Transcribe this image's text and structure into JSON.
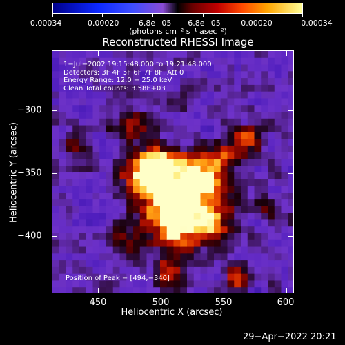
{
  "colorbar": {
    "tick_labels": [
      "−0.00034",
      "−0.00020",
      "−6.8e−05",
      "6.8e−05",
      "0.00020",
      "0.00034"
    ],
    "units": "(photons cm⁻² s⁻¹ asec⁻²)"
  },
  "title": "Reconstructed RHESSI Image",
  "annotation": {
    "time_range": "1−Jul−2002 19:15:48.000 to 19:21:48.000",
    "detectors": "Detectors: 3F 4F 5F 6F 7F 8F, Att 0",
    "energy_range": "Energy Range: 12.0 − 25.0 keV",
    "clean_counts": "Clean     Total counts: 3.58E+03",
    "peak_position": "Position of Peak = [494,−340]"
  },
  "axes": {
    "x_label": "Heliocentric X (arcsec)",
    "y_label": "Heliocentric Y (arcsec)",
    "x_ticks": [
      "450",
      "500",
      "550",
      "600"
    ],
    "y_ticks": [
      "−300",
      "−350",
      "−400"
    ]
  },
  "footer": {
    "datestamp": "29−Apr−2022 20:21"
  },
  "chart_data": {
    "type": "heatmap",
    "title": "Reconstructed RHESSI Image",
    "xlabel": "Heliocentric X (arcsec)",
    "ylabel": "Heliocentric Y (arcsec)",
    "xlim": [
      414,
      606
    ],
    "ylim": [
      -436,
      -245
    ],
    "colorbar_range": [
      -0.00034,
      0.00034
    ],
    "peak": [
      494,
      -340
    ],
    "sources": [
      {
        "x": 494,
        "y": -343,
        "sigma": 14,
        "amp": 1.0
      },
      {
        "x": 518,
        "y": -360,
        "sigma": 17,
        "amp": 0.55
      },
      {
        "x": 510,
        "y": -382,
        "sigma": 15,
        "amp": 0.5
      },
      {
        "x": 538,
        "y": -378,
        "sigma": 14,
        "amp": 0.4
      },
      {
        "x": 530,
        "y": -345,
        "sigma": 13,
        "amp": 0.45
      },
      {
        "x": 548,
        "y": -330,
        "sigma": 9,
        "amp": 0.35
      },
      {
        "x": 568,
        "y": -315,
        "sigma": 8,
        "amp": 0.5
      },
      {
        "x": 475,
        "y": -305,
        "sigma": 10,
        "amp": 0.3
      },
      {
        "x": 505,
        "y": -420,
        "sigma": 8,
        "amp": 0.35
      },
      {
        "x": 470,
        "y": -390,
        "sigma": 9,
        "amp": 0.3
      },
      {
        "x": 560,
        "y": -425,
        "sigma": 6,
        "amp": 0.45
      },
      {
        "x": 585,
        "y": -370,
        "sigma": 7,
        "amp": 0.25
      },
      {
        "x": 435,
        "y": -320,
        "sigma": 8,
        "amp": 0.2
      }
    ]
  }
}
